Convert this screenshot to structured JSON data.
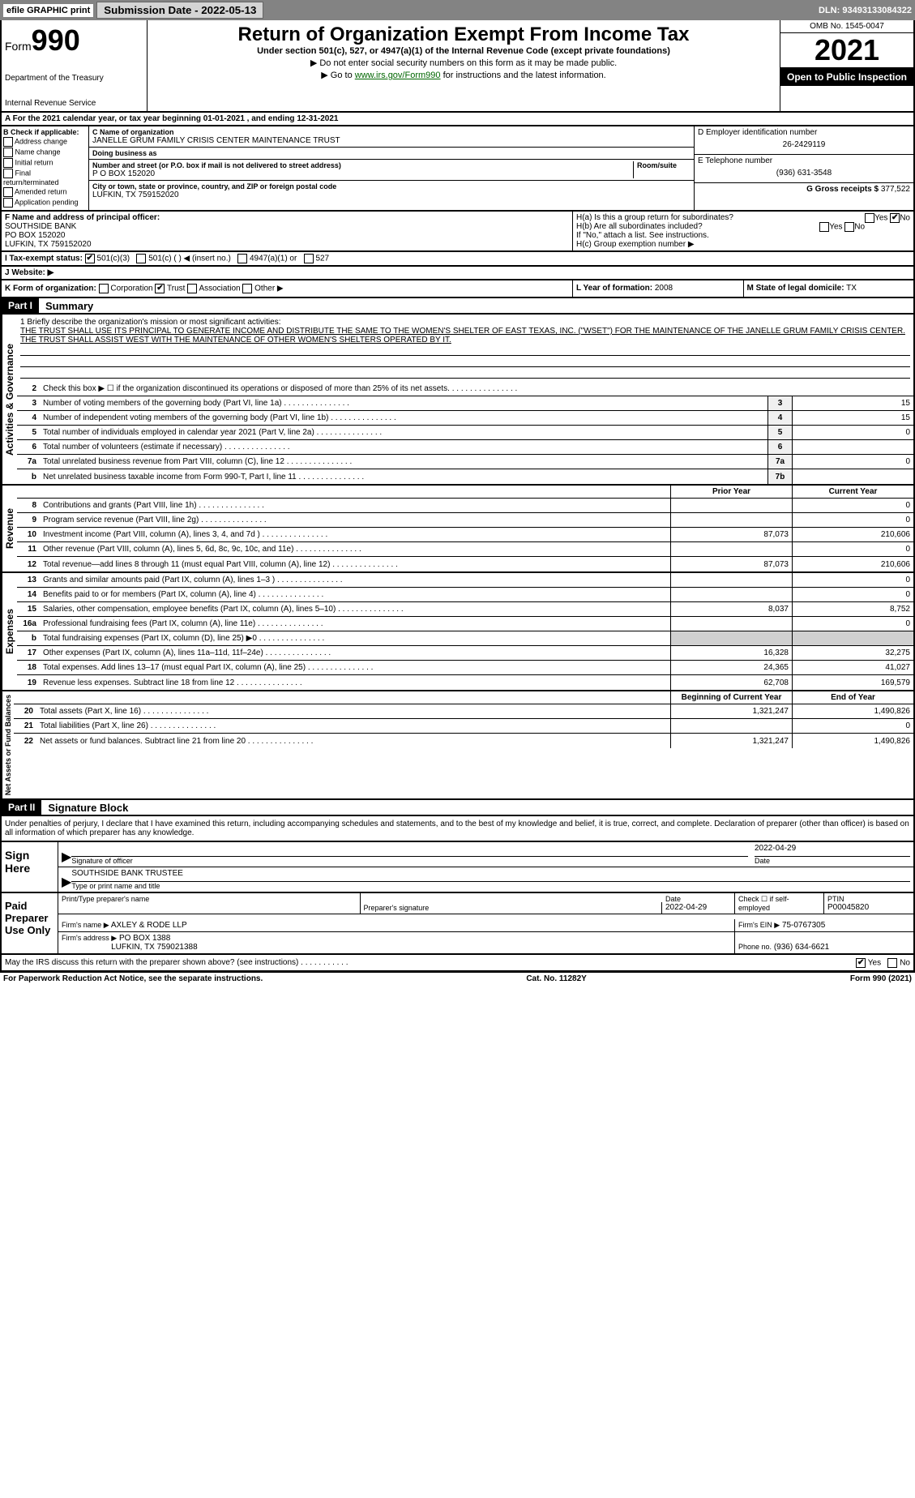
{
  "topbar": {
    "efile_label": "efile GRAPHIC print",
    "submission_label": "Submission Date - 2022-05-13",
    "dln": "DLN: 93493133084322"
  },
  "header": {
    "form_prefix": "Form",
    "form_number": "990",
    "dept": "Department of the Treasury",
    "irs": "Internal Revenue Service",
    "title": "Return of Organization Exempt From Income Tax",
    "subtitle": "Under section 501(c), 527, or 4947(a)(1) of the Internal Revenue Code (except private foundations)",
    "note1": "▶ Do not enter social security numbers on this form as it may be made public.",
    "note2_prefix": "▶ Go to ",
    "note2_link": "www.irs.gov/Form990",
    "note2_suffix": " for instructions and the latest information.",
    "omb": "OMB No. 1545-0047",
    "year": "2021",
    "open_public": "Open to Public Inspection"
  },
  "row_a": "A For the 2021 calendar year, or tax year beginning 01-01-2021    , and ending 12-31-2021",
  "col_b": {
    "header": "B Check if applicable:",
    "items": [
      "Address change",
      "Name change",
      "Initial return",
      "Final return/terminated",
      "Amended return",
      "Application pending"
    ]
  },
  "col_c": {
    "name_lbl": "C Name of organization",
    "name": "JANELLE GRUM FAMILY CRISIS CENTER MAINTENANCE TRUST",
    "dba_lbl": "Doing business as",
    "dba": "",
    "street_lbl": "Number and street (or P.O. box if mail is not delivered to street address)",
    "room_lbl": "Room/suite",
    "street": "P O BOX 152020",
    "city_lbl": "City or town, state or province, country, and ZIP or foreign postal code",
    "city": "LUFKIN, TX  759152020"
  },
  "col_de": {
    "ein_lbl": "D Employer identification number",
    "ein": "26-2429119",
    "phone_lbl": "E Telephone number",
    "phone": "(936) 631-3548",
    "gross_lbl": "G Gross receipts $",
    "gross": "377,522"
  },
  "row_f": {
    "lbl": "F Name and address of principal officer:",
    "name": "SOUTHSIDE BANK",
    "addr1": "PO BOX 152020",
    "addr2": "LUFKIN, TX  759152020"
  },
  "row_h": {
    "ha_lbl": "H(a)  Is this a group return for subordinates?",
    "hb_lbl": "H(b)  Are all subordinates included?",
    "hb_note": "If \"No,\" attach a list. See instructions.",
    "hc_lbl": "H(c)  Group exemption number ▶",
    "yes": "Yes",
    "no": "No"
  },
  "row_i": {
    "lbl": "I   Tax-exempt status:",
    "opts": [
      "501(c)(3)",
      "501(c) (   ) ◀ (insert no.)",
      "4947(a)(1) or",
      "527"
    ]
  },
  "row_j": {
    "lbl": "J   Website: ▶"
  },
  "row_k": {
    "lbl": "K Form of organization:",
    "opts": [
      "Corporation",
      "Trust",
      "Association",
      "Other ▶"
    ]
  },
  "row_l": {
    "lbl": "L Year of formation:",
    "val": "2008"
  },
  "row_m": {
    "lbl": "M State of legal domicile:",
    "val": "TX"
  },
  "part1": {
    "hdr": "Part I",
    "title": "Summary"
  },
  "governance_label": "Activities & Governance",
  "mission": {
    "line1_lbl": "1  Briefly describe the organization's mission or most significant activities:",
    "text": "THE TRUST SHALL USE ITS PRINCIPAL TO GENERATE INCOME AND DISTRIBUTE THE SAME TO THE WOMEN'S SHELTER OF EAST TEXAS, INC. (\"WSET\") FOR THE MAINTENANCE OF THE JANELLE GRUM FAMILY CRISIS CENTER. THE TRUST SHALL ASSIST WEST WITH THE MAINTENANCE OF OTHER WOMEN'S SHELTERS OPERATED BY IT."
  },
  "gov_lines": [
    {
      "n": "2",
      "t": "Check this box ▶ ☐  if the organization discontinued its operations or disposed of more than 25% of its net assets."
    },
    {
      "n": "3",
      "t": "Number of voting members of the governing body (Part VI, line 1a)",
      "box": "3",
      "v": "15"
    },
    {
      "n": "4",
      "t": "Number of independent voting members of the governing body (Part VI, line 1b)",
      "box": "4",
      "v": "15"
    },
    {
      "n": "5",
      "t": "Total number of individuals employed in calendar year 2021 (Part V, line 2a)",
      "box": "5",
      "v": "0"
    },
    {
      "n": "6",
      "t": "Total number of volunteers (estimate if necessary)",
      "box": "6",
      "v": ""
    },
    {
      "n": "7a",
      "t": "Total unrelated business revenue from Part VIII, column (C), line 12",
      "box": "7a",
      "v": "0"
    },
    {
      "n": "b",
      "t": "Net unrelated business taxable income from Form 990-T, Part I, line 11",
      "box": "7b",
      "v": ""
    }
  ],
  "revenue_label": "Revenue",
  "col_headers": {
    "prior": "Prior Year",
    "current": "Current Year"
  },
  "rev_lines": [
    {
      "n": "8",
      "t": "Contributions and grants (Part VIII, line 1h)",
      "p": "",
      "c": "0"
    },
    {
      "n": "9",
      "t": "Program service revenue (Part VIII, line 2g)",
      "p": "",
      "c": "0"
    },
    {
      "n": "10",
      "t": "Investment income (Part VIII, column (A), lines 3, 4, and 7d )",
      "p": "87,073",
      "c": "210,606"
    },
    {
      "n": "11",
      "t": "Other revenue (Part VIII, column (A), lines 5, 6d, 8c, 9c, 10c, and 11e)",
      "p": "",
      "c": "0"
    },
    {
      "n": "12",
      "t": "Total revenue—add lines 8 through 11 (must equal Part VIII, column (A), line 12)",
      "p": "87,073",
      "c": "210,606"
    }
  ],
  "expenses_label": "Expenses",
  "exp_lines": [
    {
      "n": "13",
      "t": "Grants and similar amounts paid (Part IX, column (A), lines 1–3 )",
      "p": "",
      "c": "0"
    },
    {
      "n": "14",
      "t": "Benefits paid to or for members (Part IX, column (A), line 4)",
      "p": "",
      "c": "0"
    },
    {
      "n": "15",
      "t": "Salaries, other compensation, employee benefits (Part IX, column (A), lines 5–10)",
      "p": "8,037",
      "c": "8,752"
    },
    {
      "n": "16a",
      "t": "Professional fundraising fees (Part IX, column (A), line 11e)",
      "p": "",
      "c": "0"
    },
    {
      "n": "b",
      "t": "Total fundraising expenses (Part IX, column (D), line 25) ▶0",
      "p": null,
      "c": null
    },
    {
      "n": "17",
      "t": "Other expenses (Part IX, column (A), lines 11a–11d, 11f–24e)",
      "p": "16,328",
      "c": "32,275"
    },
    {
      "n": "18",
      "t": "Total expenses. Add lines 13–17 (must equal Part IX, column (A), line 25)",
      "p": "24,365",
      "c": "41,027"
    },
    {
      "n": "19",
      "t": "Revenue less expenses. Subtract line 18 from line 12",
      "p": "62,708",
      "c": "169,579"
    }
  ],
  "netassets_label": "Net Assets or Fund Balances",
  "na_headers": {
    "begin": "Beginning of Current Year",
    "end": "End of Year"
  },
  "na_lines": [
    {
      "n": "20",
      "t": "Total assets (Part X, line 16)",
      "p": "1,321,247",
      "c": "1,490,826"
    },
    {
      "n": "21",
      "t": "Total liabilities (Part X, line 26)",
      "p": "",
      "c": "0"
    },
    {
      "n": "22",
      "t": "Net assets or fund balances. Subtract line 21 from line 20",
      "p": "1,321,247",
      "c": "1,490,826"
    }
  ],
  "part2": {
    "hdr": "Part II",
    "title": "Signature Block"
  },
  "penalties": "Under penalties of perjury, I declare that I have examined this return, including accompanying schedules and statements, and to the best of my knowledge and belief, it is true, correct, and complete. Declaration of preparer (other than officer) is based on all information of which preparer has any knowledge.",
  "sign": {
    "here": "Sign Here",
    "sig_lbl": "Signature of officer",
    "date_lbl": "Date",
    "date": "2022-04-29",
    "name": "SOUTHSIDE BANK  TRUSTEE",
    "name_lbl": "Type or print name and title"
  },
  "paid": {
    "lbl": "Paid Preparer Use Only",
    "print_lbl": "Print/Type preparer's name",
    "sig_lbl": "Preparer's signature",
    "date_lbl": "Date",
    "date": "2022-04-29",
    "check_lbl": "Check ☐ if self-employed",
    "ptin_lbl": "PTIN",
    "ptin": "P00045820",
    "firm_name_lbl": "Firm's name     ▶",
    "firm_name": "AXLEY & RODE LLP",
    "firm_ein_lbl": "Firm's EIN ▶",
    "firm_ein": "75-0767305",
    "firm_addr_lbl": "Firm's address ▶",
    "firm_addr1": "PO BOX 1388",
    "firm_addr2": "LUFKIN, TX  759021388",
    "phone_lbl": "Phone no.",
    "phone": "(936) 634-6621"
  },
  "discuss": {
    "txt": "May the IRS discuss this return with the preparer shown above? (see instructions)",
    "yes": "Yes",
    "no": "No"
  },
  "footer": {
    "left": "For Paperwork Reduction Act Notice, see the separate instructions.",
    "mid": "Cat. No. 11282Y",
    "right": "Form 990 (2021)"
  }
}
